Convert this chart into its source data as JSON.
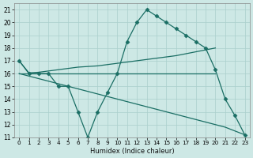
{
  "xlabel": "Humidex (Indice chaleur)",
  "x_values": [
    0,
    1,
    2,
    3,
    4,
    5,
    6,
    7,
    8,
    9,
    10,
    11,
    12,
    13,
    14,
    15,
    16,
    17,
    18,
    19,
    20,
    21,
    22,
    23
  ],
  "line_spiky": [
    17,
    16,
    16,
    16,
    15,
    15,
    13,
    11,
    13,
    14.5,
    16,
    18.5,
    20,
    21,
    20.5,
    20,
    19.5,
    19,
    18.5,
    18,
    16.3,
    14,
    12.7,
    11.2
  ],
  "line_rising": [
    17,
    16.05,
    16.1,
    16.2,
    16.3,
    16.4,
    16.5,
    16.55,
    16.6,
    16.7,
    16.8,
    16.9,
    17.0,
    17.1,
    17.2,
    17.3,
    17.4,
    17.55,
    17.7,
    17.85,
    18.0,
    null,
    null,
    null
  ],
  "line_flat": [
    16,
    16,
    16,
    16,
    16,
    16,
    16,
    16,
    16,
    16,
    16,
    16,
    16,
    16,
    16,
    16,
    16,
    16,
    16,
    16,
    16,
    null,
    null,
    null
  ],
  "line_descending": [
    16,
    15.8,
    15.6,
    15.4,
    15.2,
    15.0,
    14.8,
    14.6,
    14.4,
    14.2,
    14.0,
    13.8,
    13.6,
    13.4,
    13.2,
    13.0,
    12.8,
    12.6,
    12.4,
    12.2,
    12.0,
    11.8,
    11.5,
    11.2
  ],
  "ylim": [
    11,
    21.5
  ],
  "yticks": [
    11,
    12,
    13,
    14,
    15,
    16,
    17,
    18,
    19,
    20,
    21
  ],
  "xlim": [
    -0.5,
    23.5
  ],
  "bg_color": "#cde8e5",
  "grid_color": "#aacfcc",
  "line_color": "#1a6e64",
  "marker": "D",
  "marker_size": 2.5,
  "line_width": 0.9
}
